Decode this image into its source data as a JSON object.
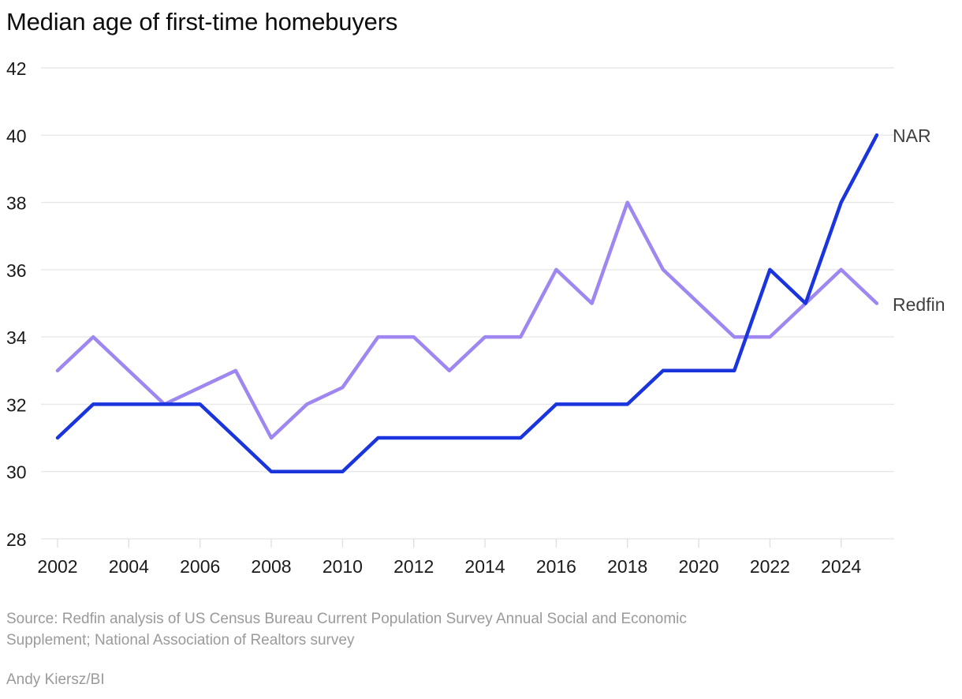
{
  "title": "Median age of first-time homebuyers",
  "chart_data": {
    "type": "line",
    "title": "Median age of first-time homebuyers",
    "x": [
      2002,
      2003,
      2004,
      2005,
      2006,
      2007,
      2008,
      2009,
      2010,
      2011,
      2012,
      2013,
      2014,
      2015,
      2016,
      2017,
      2018,
      2019,
      2020,
      2021,
      2022,
      2023,
      2024,
      2025
    ],
    "xlim": [
      2002,
      2025
    ],
    "ylim": [
      28,
      42
    ],
    "xticks": [
      2002,
      2004,
      2006,
      2008,
      2010,
      2012,
      2014,
      2016,
      2018,
      2020,
      2022,
      2024
    ],
    "yticks": [
      28,
      30,
      32,
      34,
      36,
      38,
      40,
      42
    ],
    "grid": "horizontal",
    "legend_position": "line-end-labels",
    "series": [
      {
        "name": "NAR",
        "color": "#1a35dd",
        "values": [
          31,
          32,
          32,
          32,
          32,
          31,
          30,
          30,
          30,
          31,
          31,
          31,
          31,
          31,
          32,
          32,
          32,
          33,
          33,
          33,
          36,
          35,
          38,
          40
        ]
      },
      {
        "name": "Redfin",
        "color": "#9e87f0",
        "values": [
          33,
          34,
          33,
          32,
          32.5,
          33,
          31,
          32,
          32.5,
          34,
          34,
          33,
          34,
          34,
          36,
          35,
          38,
          36,
          35,
          34,
          34,
          35,
          36,
          35
        ]
      }
    ]
  },
  "footer": {
    "source_line1": "Source: Redfin analysis of US Census Bureau Current Population Survey Annual Social and Economic",
    "source_line2": "Supplement; National Association of Realtors survey",
    "credit": "Andy Kiersz/BI"
  },
  "colors": {
    "background": "#ffffff",
    "grid": "#e8e8e8",
    "tick": "#e0e0e0",
    "axis_text": "#1b1b1b",
    "series_label": "#3f3f3f",
    "footer_text": "#9a9a9a",
    "nar": "#1a35dd",
    "redfin": "#9e87f0"
  }
}
